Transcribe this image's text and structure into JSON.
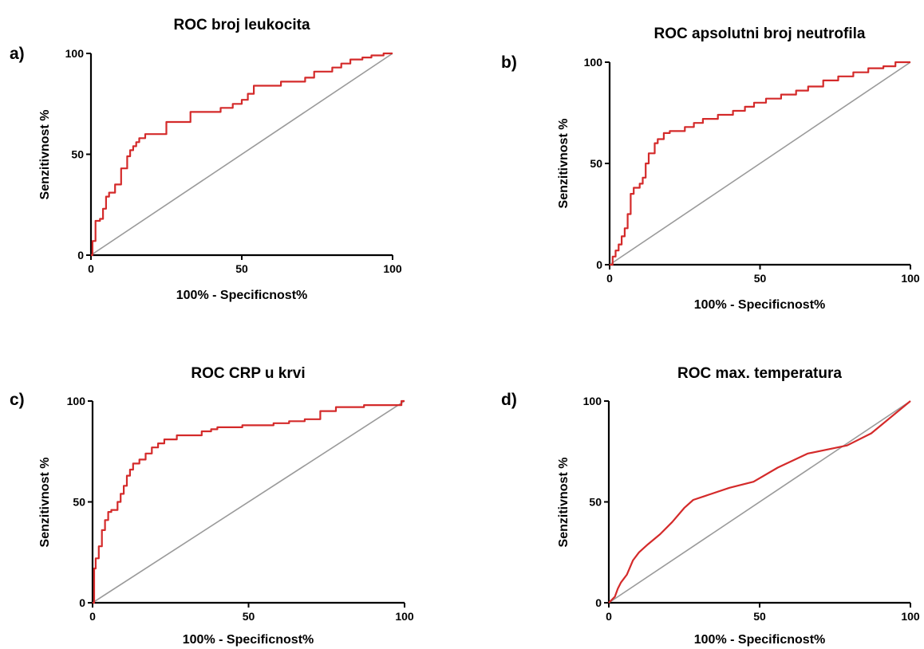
{
  "colors": {
    "roc_curve": "#d42a2a",
    "reference_line": "#9a9a9a",
    "axis": "#000000"
  },
  "chart_data": [
    {
      "type": "line",
      "panel_label": "a)",
      "title": "ROC broj leukocita",
      "xlabel": "100% - Specificnost%",
      "ylabel": "Senzitivnost %",
      "xlim": [
        0,
        100
      ],
      "ylim": [
        0,
        100
      ],
      "xticks": [
        "0",
        "50",
        "100"
      ],
      "yticks": [
        "0",
        "50",
        "100"
      ],
      "grid": false,
      "legend": "none",
      "series": [
        {
          "x": [
            0,
            0.5,
            0.5,
            1.5,
            1.5,
            3,
            3,
            4,
            4,
            5,
            5,
            6,
            6,
            8,
            8,
            10,
            10,
            12,
            12,
            13,
            13,
            14,
            14,
            15,
            15,
            16,
            16,
            18,
            18,
            25,
            25,
            33,
            33,
            43,
            43,
            47,
            47,
            50,
            50,
            52,
            52,
            54,
            54,
            63,
            63,
            71,
            71,
            74,
            74,
            80,
            80,
            83,
            83,
            86,
            86,
            90,
            90,
            93,
            93,
            97,
            97,
            100
          ],
          "y": [
            0,
            0,
            7,
            7,
            17,
            17,
            18,
            18,
            23,
            23,
            29,
            29,
            31,
            31,
            35,
            35,
            43,
            43,
            49,
            49,
            52,
            52,
            54,
            54,
            56,
            56,
            58,
            58,
            60,
            60,
            66,
            66,
            71,
            71,
            73,
            73,
            75,
            75,
            77,
            77,
            80,
            80,
            84,
            84,
            86,
            86,
            88,
            88,
            91,
            91,
            93,
            93,
            95,
            95,
            97,
            97,
            98,
            98,
            99,
            99,
            100,
            100
          ]
        },
        {
          "x": [
            0,
            100
          ],
          "y": [
            0,
            100
          ]
        }
      ]
    },
    {
      "type": "line",
      "panel_label": "b)",
      "title": "ROC apsolutni broj neutrofila",
      "xlabel": "100% - Specificnost%",
      "ylabel": "Senzitivnost %",
      "xlim": [
        0,
        100
      ],
      "ylim": [
        0,
        100
      ],
      "xticks": [
        "0",
        "50",
        "100"
      ],
      "yticks": [
        "0",
        "50",
        "100"
      ],
      "grid": false,
      "legend": "none",
      "series": [
        {
          "x": [
            0,
            1,
            1,
            2,
            2,
            3,
            3,
            4,
            4,
            5,
            5,
            6,
            6,
            7,
            7,
            8,
            8,
            10,
            10,
            11,
            11,
            12,
            12,
            13,
            13,
            15,
            15,
            16,
            16,
            18,
            18,
            20,
            20,
            25,
            25,
            28,
            28,
            31,
            31,
            36,
            36,
            41,
            41,
            45,
            45,
            48,
            48,
            52,
            52,
            57,
            57,
            62,
            62,
            66,
            66,
            71,
            71,
            76,
            76,
            81,
            81,
            86,
            86,
            91,
            91,
            95,
            95,
            100
          ],
          "y": [
            0,
            0,
            4,
            4,
            7,
            7,
            10,
            10,
            14,
            14,
            18,
            18,
            25,
            25,
            35,
            35,
            38,
            38,
            40,
            40,
            43,
            43,
            50,
            50,
            55,
            55,
            60,
            60,
            62,
            62,
            65,
            65,
            66,
            66,
            68,
            68,
            70,
            70,
            72,
            72,
            74,
            74,
            76,
            76,
            78,
            78,
            80,
            80,
            82,
            82,
            84,
            84,
            86,
            86,
            88,
            88,
            91,
            91,
            93,
            93,
            95,
            95,
            97,
            97,
            98,
            98,
            100,
            100
          ]
        },
        {
          "x": [
            0,
            100
          ],
          "y": [
            0,
            100
          ]
        }
      ]
    },
    {
      "type": "line",
      "panel_label": "c)",
      "title": "ROC CRP u krvi",
      "xlabel": "100% - Specificnost%",
      "ylabel": "Senzitivnost %",
      "xlim": [
        0,
        100
      ],
      "ylim": [
        0,
        100
      ],
      "xticks": [
        "0",
        "50",
        "100"
      ],
      "yticks": [
        "0",
        "50",
        "100"
      ],
      "grid": false,
      "legend": "none",
      "series": [
        {
          "x": [
            0,
            0.5,
            0.5,
            1,
            1,
            2,
            2,
            3,
            3,
            4,
            4,
            5,
            5,
            6,
            6,
            8,
            8,
            9,
            9,
            10,
            10,
            11,
            11,
            12,
            12,
            13,
            13,
            15,
            15,
            17,
            17,
            19,
            19,
            21,
            21,
            23,
            23,
            27,
            27,
            35,
            35,
            38,
            38,
            40,
            40,
            48,
            48,
            58,
            58,
            63,
            63,
            68,
            68,
            73,
            73,
            78,
            78,
            87,
            87,
            99,
            99,
            100
          ],
          "y": [
            0,
            0,
            17,
            17,
            22,
            22,
            28,
            28,
            36,
            36,
            41,
            41,
            45,
            45,
            46,
            46,
            50,
            50,
            54,
            54,
            58,
            58,
            63,
            63,
            66,
            66,
            69,
            69,
            71,
            71,
            74,
            74,
            77,
            77,
            79,
            79,
            81,
            81,
            83,
            83,
            85,
            85,
            86,
            86,
            87,
            87,
            88,
            88,
            89,
            89,
            90,
            90,
            91,
            91,
            95,
            95,
            97,
            97,
            98,
            98,
            100,
            100
          ]
        },
        {
          "x": [
            0,
            100
          ],
          "y": [
            0,
            100
          ]
        }
      ]
    },
    {
      "type": "line",
      "panel_label": "d)",
      "title": "ROC max. temperatura",
      "xlabel": "100% - Specificnost%",
      "ylabel": "Senzitivnost %",
      "xlim": [
        0,
        100
      ],
      "ylim": [
        0,
        100
      ],
      "xticks": [
        "0",
        "50",
        "100"
      ],
      "yticks": [
        "0",
        "50",
        "100"
      ],
      "grid": false,
      "legend": "none",
      "series": [
        {
          "x": [
            0,
            2,
            3,
            4,
            6,
            8,
            10,
            13,
            17,
            21,
            25,
            28,
            32,
            40,
            48,
            56,
            66,
            79,
            87,
            100
          ],
          "y": [
            0,
            3,
            7,
            10,
            14,
            21,
            25,
            29,
            34,
            40,
            47,
            51,
            53,
            57,
            60,
            67,
            74,
            78,
            84,
            100
          ]
        },
        {
          "x": [
            0,
            100
          ],
          "y": [
            0,
            100
          ]
        }
      ]
    }
  ]
}
